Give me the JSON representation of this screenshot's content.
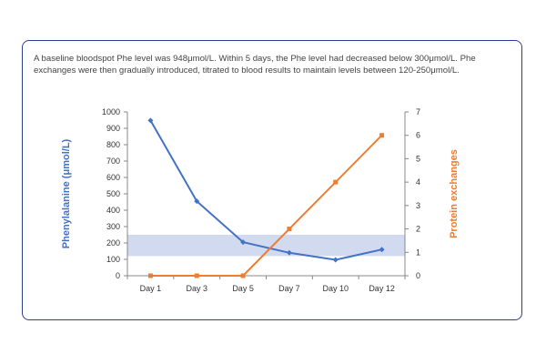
{
  "caption": "A baseline bloodspot Phe level was 948μmol/L. Within 5 days, the Phe level had decreased below 300μmol/L. Phe exchanges were then gradually introduced, titrated to blood results to maintain levels between 120-250μmol/L.",
  "colors": {
    "phe": "#4472c4",
    "protein": "#ed7d31",
    "band": "#c9d3ec",
    "card_border": "#2f3f8f"
  },
  "chart_data": {
    "type": "line",
    "categories": [
      "Day 1",
      "Day 3",
      "Day 5",
      "Day 7",
      "Day 10",
      "Day 12"
    ],
    "series": [
      {
        "name": "Phenylalanine (μmol/L)",
        "axis": "left",
        "values": [
          948,
          455,
          205,
          140,
          97,
          160
        ]
      },
      {
        "name": "Protein exchanges",
        "axis": "right",
        "values": [
          0,
          0,
          0,
          2,
          4,
          6
        ]
      }
    ],
    "ylabel": "Phenylalanine (μmol/L)",
    "y2label": "Protein exchanges",
    "ylim": [
      0,
      1000
    ],
    "y2lim": [
      0,
      7
    ],
    "yticks": [
      "0",
      "100",
      "200",
      "300",
      "400",
      "500",
      "600",
      "700",
      "800",
      "900",
      "1000"
    ],
    "y2ticks": [
      "0",
      "1",
      "2",
      "3",
      "4",
      "5",
      "6",
      "7"
    ],
    "target_band": [
      120,
      250
    ],
    "grid": false,
    "legend": "none"
  }
}
